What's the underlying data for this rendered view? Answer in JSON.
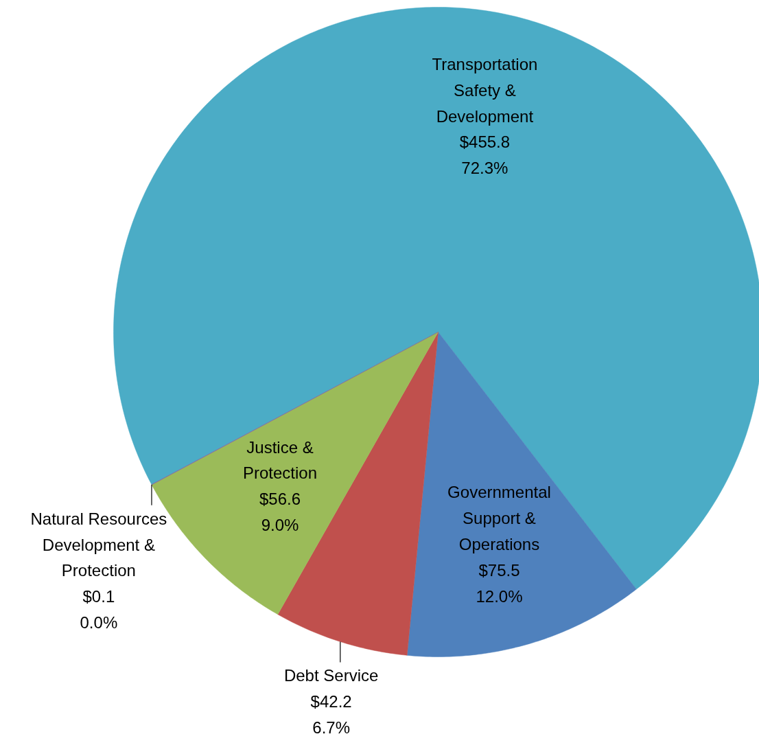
{
  "chart_data": {
    "type": "pie",
    "categories": [
      "Transportation\nSafety &\nDevelopment",
      "Governmental\nSupport &\nOperations",
      "Debt Service",
      "Justice &\nProtection",
      "Natural Resources\nDevelopment &\nProtection"
    ],
    "values": [
      455.8,
      75.5,
      42.2,
      56.6,
      0.1
    ],
    "value_labels": [
      "$455.8\n72.3%",
      "$75.5\n12.0%",
      "$42.2\n6.7%",
      "$56.6\n9.0%",
      "$0.1\n0.0%"
    ],
    "colors": [
      "#4bacc6",
      "#4f81bd",
      "#c0504d",
      "#9bbb59",
      "#8064a2"
    ]
  }
}
